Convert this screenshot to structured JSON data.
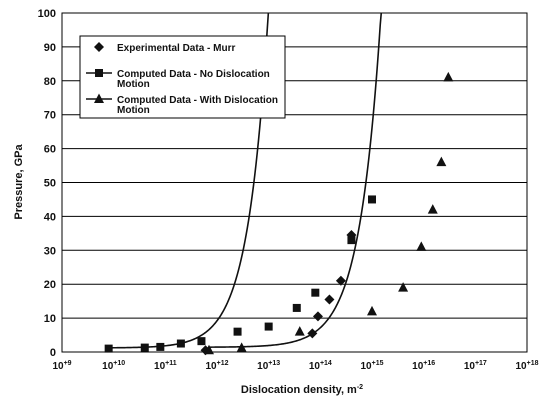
{
  "chart_data": {
    "type": "scatter",
    "xlabel": "Dislocation density, m",
    "xlabel_sup": "-2",
    "ylabel": "Pressure, GPa",
    "xscale": "log",
    "xlim": [
      1000000000.0,
      1e+18
    ],
    "ylim": [
      0,
      100
    ],
    "x_ticks": [
      {
        "base": "10",
        "exp": "+9"
      },
      {
        "base": "10",
        "exp": "+10"
      },
      {
        "base": "10",
        "exp": "+11"
      },
      {
        "base": "10",
        "exp": "+12"
      },
      {
        "base": "10",
        "exp": "+13"
      },
      {
        "base": "10",
        "exp": "+14"
      },
      {
        "base": "10",
        "exp": "+15"
      },
      {
        "base": "10",
        "exp": "+16"
      },
      {
        "base": "10",
        "exp": "+17"
      },
      {
        "base": "10",
        "exp": "+18"
      }
    ],
    "y_ticks": [
      "0",
      "10",
      "20",
      "30",
      "40",
      "50",
      "60",
      "70",
      "80",
      "90",
      "100"
    ],
    "grid": "horizontal",
    "legend_position": "top-left",
    "series": [
      {
        "name": "Experimental Data - Murr",
        "marker": "diamond",
        "line": false,
        "x": [
          600000000000.0,
          70000000000000.0,
          90000000000000.0,
          150000000000000.0,
          250000000000000.0,
          400000000000000.0
        ],
        "y": [
          0.5,
          5.5,
          10.5,
          15.5,
          21,
          34.5
        ]
      },
      {
        "name": "Computed Data - No Dislocation Motion",
        "marker": "square",
        "line": true,
        "x": [
          8000000000.0,
          40000000000.0,
          80000000000.0,
          200000000000.0,
          500000000000.0,
          2500000000000.0,
          10000000000000.0,
          35000000000000.0,
          80000000000000.0,
          400000000000000.0,
          1000000000000000.0
        ],
        "y": [
          1,
          1.3,
          1.5,
          2.5,
          3.2,
          6,
          7.5,
          13,
          17.5,
          33,
          45
        ],
        "curve": {
          "a": 1.2,
          "b": 5.05e-13,
          "n": 1.1,
          "x_end": 4500000000000000.0
        }
      },
      {
        "name": "Computed Data - With Dislocation Motion",
        "marker": "triangle",
        "line": true,
        "x": [
          700000000000.0,
          3000000000000.0,
          40000000000000.0,
          1000000000000000.0,
          4000000000000000.0,
          9000000000000000.0,
          1.5e+16,
          2.2e+16,
          3e+16
        ],
        "y": [
          0.5,
          1.2,
          6,
          12,
          19,
          31,
          42,
          56,
          81
        ],
        "curve": {
          "a": 1.4,
          "b": 1.15e-14,
          "n": 1.05,
          "x_end": 3.8e+16
        }
      }
    ]
  }
}
